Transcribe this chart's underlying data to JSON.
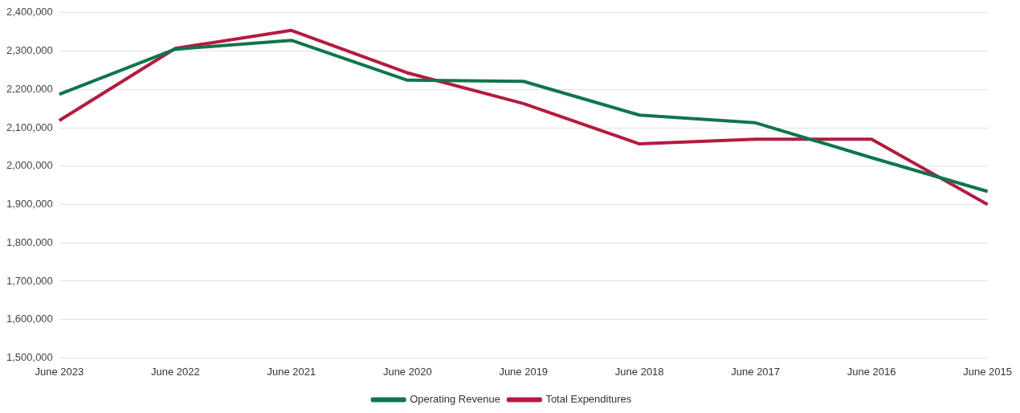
{
  "chart_data": {
    "type": "line",
    "categories": [
      "June 2023",
      "June 2022",
      "June 2021",
      "June 2020",
      "June 2019",
      "June 2018",
      "June 2017",
      "June 2016",
      "June 2015"
    ],
    "series": [
      {
        "name": "Operating Revenue",
        "color": "#10754c",
        "values": [
          2187000,
          2305000,
          2328000,
          2224000,
          2221000,
          2133000,
          2113000,
          2022000,
          1934000
        ]
      },
      {
        "name": "Total Expenditures",
        "color": "#b31b40",
        "values": [
          2119000,
          2307000,
          2354000,
          2243000,
          2163000,
          2058000,
          2070000,
          2070000,
          1900000
        ]
      }
    ],
    "ylim": [
      1500000,
      2400000
    ],
    "yticks": [
      {
        "value": 1500000,
        "label": "1,500,000"
      },
      {
        "value": 1600000,
        "label": "1,600,000"
      },
      {
        "value": 1700000,
        "label": "1,700,000"
      },
      {
        "value": 1800000,
        "label": "1,800,000"
      },
      {
        "value": 1900000,
        "label": "1,900,000"
      },
      {
        "value": 2000000,
        "label": "2,000,000"
      },
      {
        "value": 2100000,
        "label": "2,100,000"
      },
      {
        "value": 2200000,
        "label": "2,200,000"
      },
      {
        "value": 2300000,
        "label": "2,300,000"
      },
      {
        "value": 2400000,
        "label": "2,400,000"
      }
    ],
    "grid": "y",
    "legend": "bottom",
    "marker": "none",
    "line_style": "solid"
  }
}
